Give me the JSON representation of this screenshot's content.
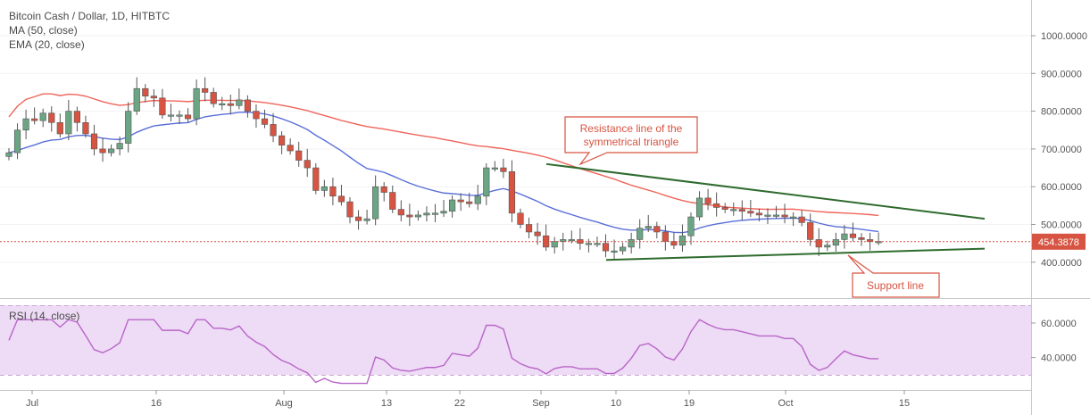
{
  "chart_data": [
    {
      "type": "candlestick",
      "title": "Bitcoin Cash / Dollar, 1D, HITBTC",
      "indicators": [
        "MA (50, close)",
        "EMA (20, close)"
      ],
      "ylim": [
        300,
        1060
      ],
      "y_ticks": [
        "1000.0000",
        "900.0000",
        "800.0000",
        "700.0000",
        "600.0000",
        "500.0000",
        "400.0000"
      ],
      "x_tick_labels": [
        "Jul",
        "16",
        "Aug",
        "13",
        "22",
        "Sep",
        "10",
        "19",
        "Oct",
        "15"
      ],
      "last_price": "454.3878",
      "annotations": [
        "Resistance line of the\nsymmetrical triangle",
        "Support line"
      ],
      "colors": {
        "up": "#6BA583",
        "down": "#D75442",
        "ma": "#F0645A",
        "ema": "#5A6FD8",
        "trend": "#2E6B2E",
        "price_line": "#D75442"
      }
    },
    {
      "type": "line",
      "title": "RSI (14, close)",
      "ylim": [
        20,
        75
      ],
      "y_ticks": [
        "60.0000",
        "40.0000"
      ],
      "band": [
        30,
        70
      ],
      "colors": {
        "line": "#B865C8",
        "band": "#EEDBF5"
      }
    }
  ]
}
